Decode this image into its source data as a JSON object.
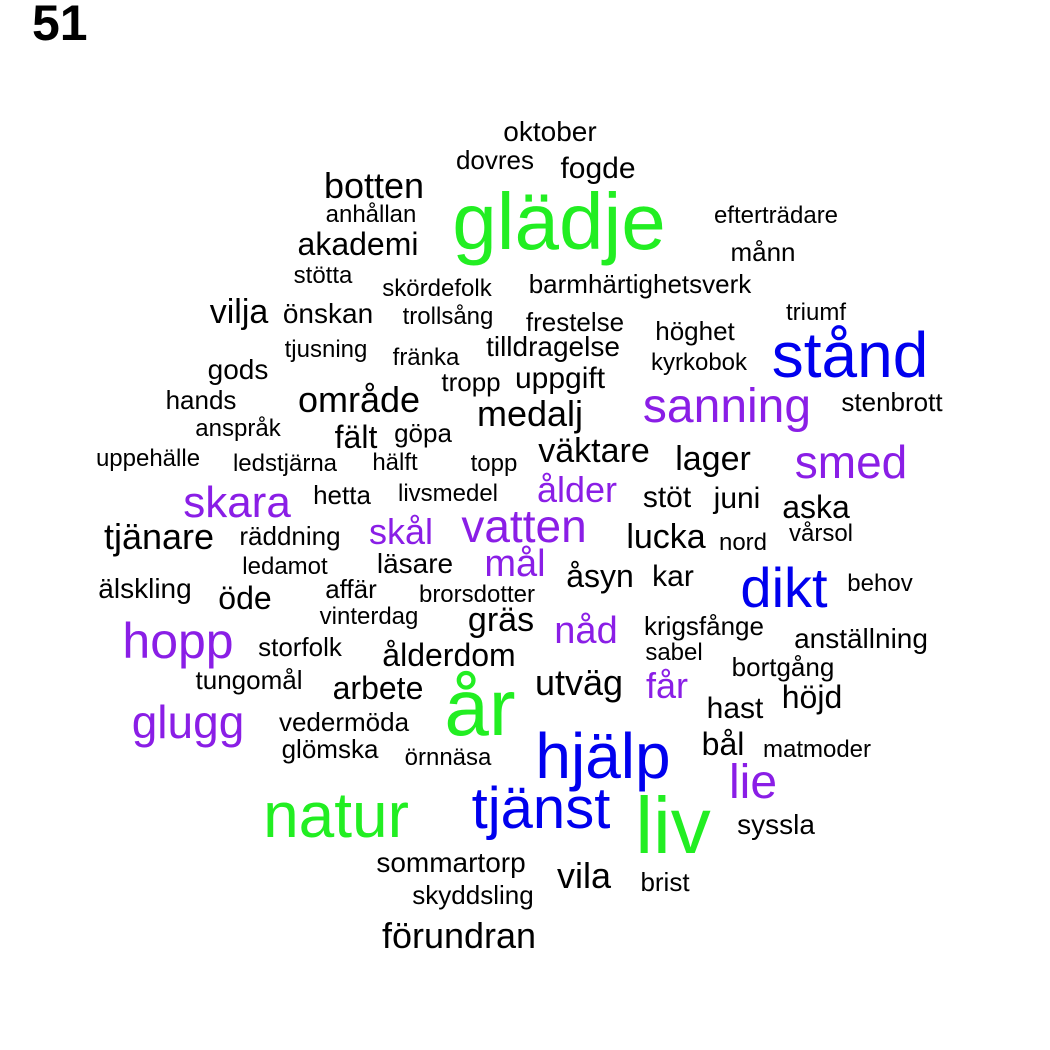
{
  "figure_label": "51",
  "colors": {
    "black": "#000000",
    "green": "#22ee22",
    "blue": "#0000ee",
    "purple": "#8a1ee6"
  },
  "words": [
    {
      "text": "oktober",
      "c": "black"
    },
    {
      "text": "dovres",
      "c": "black"
    },
    {
      "text": "fogde",
      "c": "black"
    },
    {
      "text": "botten",
      "c": "black"
    },
    {
      "text": "glädje",
      "c": "green"
    },
    {
      "text": "anhållan",
      "c": "black"
    },
    {
      "text": "efterträdare",
      "c": "black"
    },
    {
      "text": "akademi",
      "c": "black"
    },
    {
      "text": "månn",
      "c": "black"
    },
    {
      "text": "stötta",
      "c": "black"
    },
    {
      "text": "skördefolk",
      "c": "black"
    },
    {
      "text": "barmhärtighetsverk",
      "c": "black"
    },
    {
      "text": "vilja",
      "c": "black"
    },
    {
      "text": "önskan",
      "c": "black"
    },
    {
      "text": "trollsång",
      "c": "black"
    },
    {
      "text": "frestelse",
      "c": "black"
    },
    {
      "text": "triumf",
      "c": "black"
    },
    {
      "text": "höghet",
      "c": "black"
    },
    {
      "text": "stånd",
      "c": "blue"
    },
    {
      "text": "tjusning",
      "c": "black"
    },
    {
      "text": "tilldragelse",
      "c": "black"
    },
    {
      "text": "fränka",
      "c": "black"
    },
    {
      "text": "kyrkobok",
      "c": "black"
    },
    {
      "text": "gods",
      "c": "black"
    },
    {
      "text": "tropp",
      "c": "black"
    },
    {
      "text": "uppgift",
      "c": "black"
    },
    {
      "text": "hands",
      "c": "black"
    },
    {
      "text": "område",
      "c": "black"
    },
    {
      "text": "sanning",
      "c": "purple"
    },
    {
      "text": "stenbrott",
      "c": "black"
    },
    {
      "text": "medalj",
      "c": "black"
    },
    {
      "text": "anspråk",
      "c": "black"
    },
    {
      "text": "fält",
      "c": "black"
    },
    {
      "text": "göpa",
      "c": "black"
    },
    {
      "text": "uppehälle",
      "c": "black"
    },
    {
      "text": "ledstjärna",
      "c": "black"
    },
    {
      "text": "hälft",
      "c": "black"
    },
    {
      "text": "topp",
      "c": "black"
    },
    {
      "text": "väktare",
      "c": "black"
    },
    {
      "text": "lager",
      "c": "black"
    },
    {
      "text": "smed",
      "c": "purple"
    },
    {
      "text": "skara",
      "c": "purple"
    },
    {
      "text": "hetta",
      "c": "black"
    },
    {
      "text": "livsmedel",
      "c": "black"
    },
    {
      "text": "ålder",
      "c": "purple"
    },
    {
      "text": "stöt",
      "c": "black"
    },
    {
      "text": "juni",
      "c": "black"
    },
    {
      "text": "aska",
      "c": "black"
    },
    {
      "text": "tjänare",
      "c": "black"
    },
    {
      "text": "räddning",
      "c": "black"
    },
    {
      "text": "skål",
      "c": "purple"
    },
    {
      "text": "vatten",
      "c": "purple"
    },
    {
      "text": "lucka",
      "c": "black"
    },
    {
      "text": "nord",
      "c": "black"
    },
    {
      "text": "vårsol",
      "c": "black"
    },
    {
      "text": "ledamot",
      "c": "black"
    },
    {
      "text": "läsare",
      "c": "black"
    },
    {
      "text": "mål",
      "c": "purple"
    },
    {
      "text": "åsyn",
      "c": "black"
    },
    {
      "text": "kar",
      "c": "black"
    },
    {
      "text": "dikt",
      "c": "blue"
    },
    {
      "text": "älskling",
      "c": "black"
    },
    {
      "text": "affär",
      "c": "black"
    },
    {
      "text": "öde",
      "c": "black"
    },
    {
      "text": "brorsdotter",
      "c": "black"
    },
    {
      "text": "behov",
      "c": "black"
    },
    {
      "text": "vinterdag",
      "c": "black"
    },
    {
      "text": "gräs",
      "c": "black"
    },
    {
      "text": "nåd",
      "c": "purple"
    },
    {
      "text": "krigsfånge",
      "c": "black"
    },
    {
      "text": "hopp",
      "c": "purple"
    },
    {
      "text": "anställning",
      "c": "black"
    },
    {
      "text": "storfolk",
      "c": "black"
    },
    {
      "text": "sabel",
      "c": "black"
    },
    {
      "text": "ålderdom",
      "c": "black"
    },
    {
      "text": "bortgång",
      "c": "black"
    },
    {
      "text": "tungomål",
      "c": "black"
    },
    {
      "text": "arbete",
      "c": "black"
    },
    {
      "text": "utväg",
      "c": "black"
    },
    {
      "text": "får",
      "c": "purple"
    },
    {
      "text": "år",
      "c": "green"
    },
    {
      "text": "höjd",
      "c": "black"
    },
    {
      "text": "hast",
      "c": "black"
    },
    {
      "text": "glugg",
      "c": "purple"
    },
    {
      "text": "vedermöda",
      "c": "black"
    },
    {
      "text": "bål",
      "c": "black"
    },
    {
      "text": "matmoder",
      "c": "black"
    },
    {
      "text": "glömska",
      "c": "black"
    },
    {
      "text": "örnnäsa",
      "c": "black"
    },
    {
      "text": "hjälp",
      "c": "blue"
    },
    {
      "text": "lie",
      "c": "purple"
    },
    {
      "text": "natur",
      "c": "green"
    },
    {
      "text": "tjänst",
      "c": "blue"
    },
    {
      "text": "liv",
      "c": "green"
    },
    {
      "text": "syssla",
      "c": "black"
    },
    {
      "text": "sommartorp",
      "c": "black"
    },
    {
      "text": "vila",
      "c": "black"
    },
    {
      "text": "brist",
      "c": "black"
    },
    {
      "text": "skyddsling",
      "c": "black"
    },
    {
      "text": "förundran",
      "c": "black"
    }
  ]
}
